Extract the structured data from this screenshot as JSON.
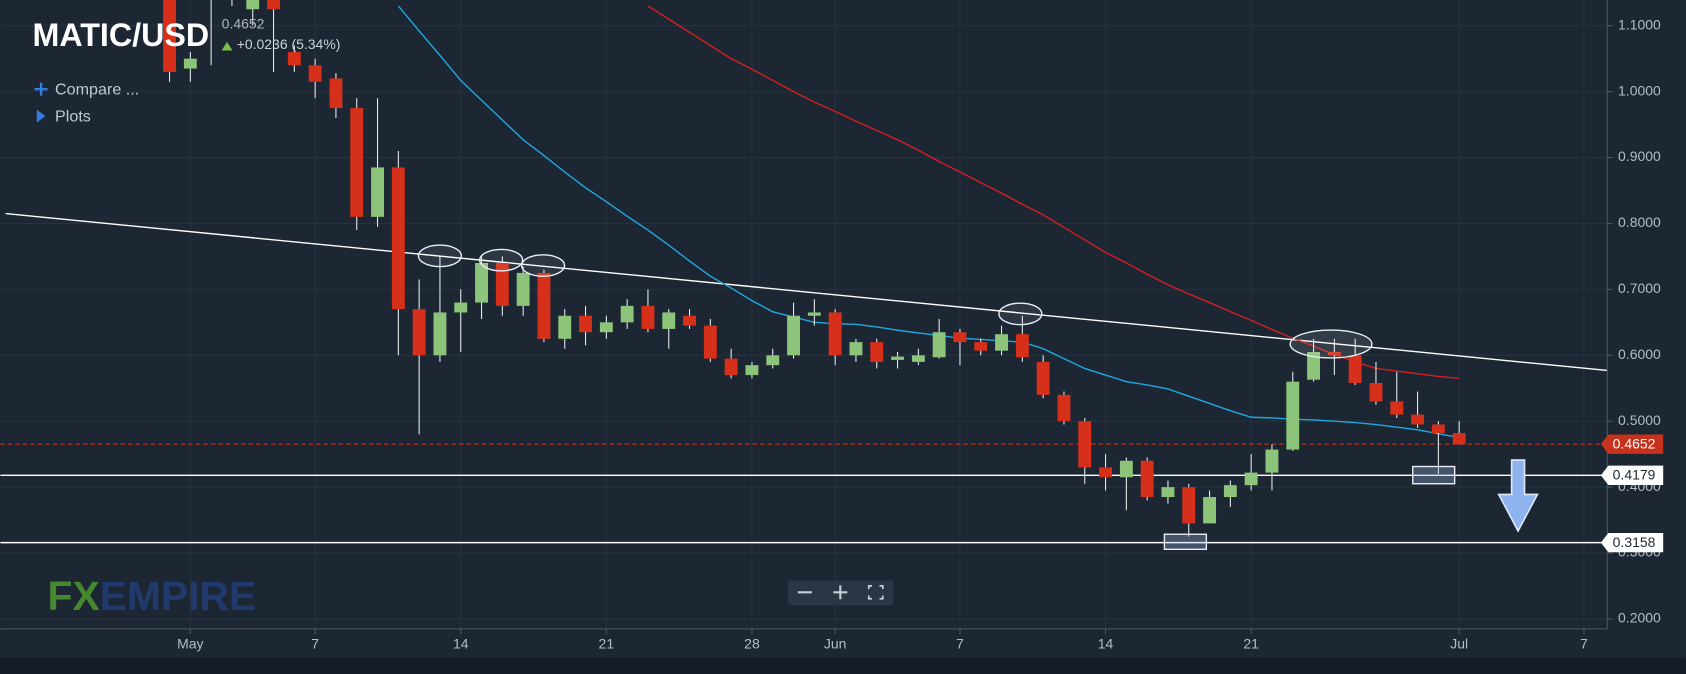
{
  "chart_data": {
    "type": "candlestick",
    "title": "MATIC/USD",
    "price": "0.4652",
    "change": "+0.0236 (5.34%)",
    "menu": [
      "Compare ...",
      "Plots"
    ],
    "watermark": [
      "FX",
      "EMPIRE"
    ],
    "categories": [
      null,
      "May",
      null,
      null,
      null,
      null,
      null,
      "7",
      null,
      null,
      null,
      null,
      null,
      null,
      "14",
      null,
      null,
      null,
      null,
      null,
      null,
      "21",
      null,
      null,
      null,
      null,
      null,
      null,
      "28",
      null,
      null,
      null,
      "Jun",
      null,
      null,
      null,
      null,
      null,
      "7",
      null,
      null,
      null,
      null,
      null,
      null,
      "14",
      null,
      null,
      null,
      null,
      null,
      null,
      "21",
      null,
      null,
      null,
      null,
      null,
      null,
      null,
      null,
      null,
      "Jul",
      null,
      null,
      null,
      null,
      null,
      "7"
    ],
    "open": [
      1.16,
      1.035,
      1.16,
      1.2,
      1.125,
      1.2,
      1.06,
      1.04,
      1.02,
      0.975,
      0.81,
      0.885,
      0.67,
      0.6,
      0.665,
      0.68,
      0.74,
      0.675,
      0.725,
      0.625,
      0.66,
      0.635,
      0.65,
      0.675,
      0.64,
      0.66,
      0.645,
      0.595,
      0.57,
      0.585,
      0.6,
      0.66,
      0.665,
      0.6,
      0.62,
      0.593,
      0.59,
      0.597,
      0.635,
      0.62,
      0.607,
      0.632,
      0.59,
      0.54,
      0.5,
      0.43,
      0.415,
      0.44,
      0.385,
      0.4,
      0.345,
      0.385,
      0.403,
      0.422,
      0.457,
      0.563,
      0.605,
      0.6,
      0.558,
      0.53,
      0.51,
      0.495,
      0.482,
      null,
      null,
      null,
      null,
      null,
      null
    ],
    "high": [
      1.18,
      1.06,
      1.2,
      1.24,
      1.2,
      1.22,
      1.07,
      1.05,
      1.028,
      0.99,
      0.99,
      0.91,
      0.715,
      0.75,
      0.7,
      0.75,
      0.75,
      0.735,
      0.73,
      0.67,
      0.675,
      0.66,
      0.685,
      0.7,
      0.67,
      0.67,
      0.655,
      0.61,
      0.59,
      0.61,
      0.68,
      0.685,
      0.67,
      0.625,
      0.625,
      0.605,
      0.61,
      0.655,
      0.64,
      0.625,
      0.645,
      0.66,
      0.6,
      0.545,
      0.505,
      0.45,
      0.445,
      0.445,
      0.41,
      0.405,
      0.395,
      0.41,
      0.45,
      0.465,
      0.575,
      0.625,
      0.625,
      0.625,
      0.59,
      0.575,
      0.545,
      0.5,
      0.5,
      null,
      null,
      null,
      null,
      null,
      null
    ],
    "low": [
      1.015,
      1.015,
      1.04,
      1.13,
      1.1,
      1.03,
      1.03,
      0.99,
      0.96,
      0.79,
      0.795,
      0.6,
      0.48,
      0.59,
      0.605,
      0.655,
      0.66,
      0.66,
      0.62,
      0.61,
      0.615,
      0.625,
      0.64,
      0.635,
      0.61,
      0.64,
      0.59,
      0.565,
      0.565,
      0.58,
      0.595,
      0.645,
      0.585,
      0.59,
      0.58,
      0.58,
      0.585,
      0.595,
      0.585,
      0.6,
      0.6,
      0.59,
      0.535,
      0.495,
      0.405,
      0.395,
      0.365,
      0.38,
      0.375,
      0.325,
      0.345,
      0.37,
      0.395,
      0.395,
      0.455,
      0.56,
      0.57,
      0.555,
      0.525,
      0.505,
      0.49,
      0.42,
      0.465,
      null,
      null,
      null,
      null,
      null,
      null
    ],
    "close": [
      1.03,
      1.05,
      1.18,
      1.22,
      1.18,
      1.125,
      1.04,
      1.015,
      0.975,
      0.81,
      0.885,
      0.67,
      0.6,
      0.665,
      0.68,
      0.74,
      0.675,
      0.725,
      0.625,
      0.66,
      0.635,
      0.65,
      0.675,
      0.64,
      0.665,
      0.645,
      0.595,
      0.57,
      0.585,
      0.6,
      0.66,
      0.665,
      0.6,
      0.62,
      0.59,
      0.598,
      0.6,
      0.635,
      0.62,
      0.607,
      0.632,
      0.597,
      0.54,
      0.5,
      0.43,
      0.415,
      0.44,
      0.385,
      0.4,
      0.345,
      0.385,
      0.403,
      0.422,
      0.457,
      0.56,
      0.605,
      0.6,
      0.558,
      0.53,
      0.51,
      0.495,
      0.482,
      0.4652,
      null,
      null,
      null,
      null,
      null,
      null
    ],
    "up_color": "#8cc47a",
    "down_color": "#d6301b",
    "ma_lines": [
      {
        "color": "#1fa8e0",
        "values": [
          null,
          null,
          null,
          null,
          null,
          null,
          null,
          null,
          null,
          null,
          null,
          1.13,
          1.092,
          1.055,
          1.017,
          0.987,
          0.957,
          0.927,
          0.903,
          0.878,
          0.854,
          0.833,
          0.811,
          0.79,
          0.767,
          0.743,
          0.72,
          0.702,
          0.683,
          0.666,
          0.658,
          0.65,
          0.648,
          0.647,
          0.643,
          0.638,
          0.634,
          0.63,
          0.626,
          0.624,
          0.622,
          0.62,
          0.61,
          0.595,
          0.58,
          0.57,
          0.56,
          0.555,
          0.549,
          0.538,
          0.527,
          0.516,
          0.506,
          0.505,
          0.503,
          0.502,
          0.5,
          0.498,
          0.495,
          0.491,
          0.487,
          0.481,
          0.475,
          null,
          null,
          null,
          null,
          null,
          null
        ]
      },
      {
        "color": "#d41f1f",
        "values": [
          null,
          null,
          null,
          null,
          null,
          null,
          null,
          null,
          null,
          null,
          null,
          null,
          null,
          null,
          null,
          null,
          null,
          null,
          null,
          null,
          null,
          null,
          null,
          1.13,
          1.11,
          1.09,
          1.07,
          1.05,
          1.034,
          1.017,
          1.0,
          0.984,
          0.97,
          0.955,
          0.941,
          0.927,
          0.911,
          0.894,
          0.878,
          0.862,
          0.846,
          0.829,
          0.813,
          0.794,
          0.775,
          0.756,
          0.74,
          0.723,
          0.707,
          0.693,
          0.68,
          0.666,
          0.653,
          0.639,
          0.626,
          0.614,
          0.601,
          0.59,
          0.58,
          0.576,
          0.572,
          0.568,
          0.565,
          null,
          null,
          null,
          null,
          null,
          null
        ]
      }
    ],
    "trendline": [
      0.815,
      0.577
    ],
    "last_price": {
      "value": 0.4652,
      "label": "0.4652"
    },
    "levels": [
      {
        "value": 0.4179,
        "label": "0.4179"
      },
      {
        "value": 0.3158,
        "label": "0.3158"
      }
    ],
    "ylim": [
      0.185,
      1.139
    ],
    "yticks": [
      {
        "value": 1.1,
        "label": "1.1000"
      },
      {
        "value": 1.0,
        "label": "1.0000"
      },
      {
        "value": 0.9,
        "label": "0.9000"
      },
      {
        "value": 0.8,
        "label": "0.8000"
      },
      {
        "value": 0.7,
        "label": "0.7000"
      },
      {
        "value": 0.6,
        "label": "0.6000"
      },
      {
        "value": 0.5,
        "label": "0.5000"
      },
      {
        "value": 0.4,
        "label": "0.4000"
      },
      {
        "value": 0.3,
        "label": "0.3000"
      },
      {
        "value": 0.2,
        "label": "0.2000"
      }
    ],
    "grid": true
  }
}
